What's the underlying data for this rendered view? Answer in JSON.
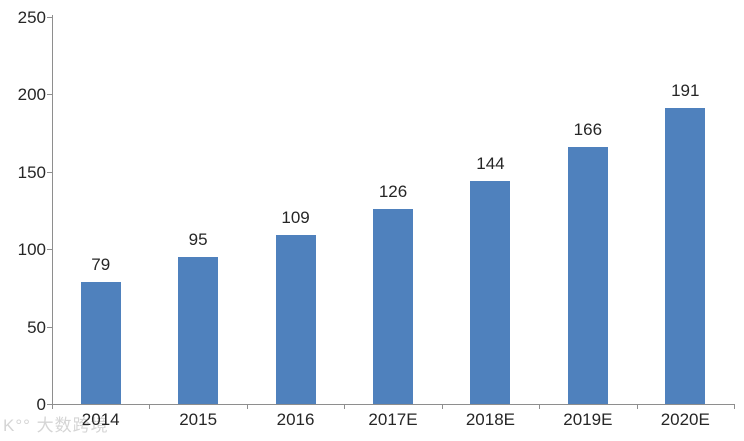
{
  "chart_data": {
    "type": "bar",
    "categories": [
      "2014",
      "2015",
      "2016",
      "2017E",
      "2018E",
      "2019E",
      "2020E"
    ],
    "values": [
      79,
      95,
      109,
      126,
      144,
      166,
      191
    ],
    "title": "",
    "xlabel": "",
    "ylabel": "",
    "ylim": [
      0,
      250
    ],
    "yticks": [
      0,
      50,
      100,
      150,
      200,
      250
    ],
    "bar_color": "#4F81BD",
    "axis_color": "#8E8E8E",
    "label_color": "#262626",
    "grid": false,
    "legend": false,
    "data_labels": true
  },
  "watermark": {
    "logo": "K°°",
    "text": "大数跨境",
    "color": "#D5D5D5"
  }
}
